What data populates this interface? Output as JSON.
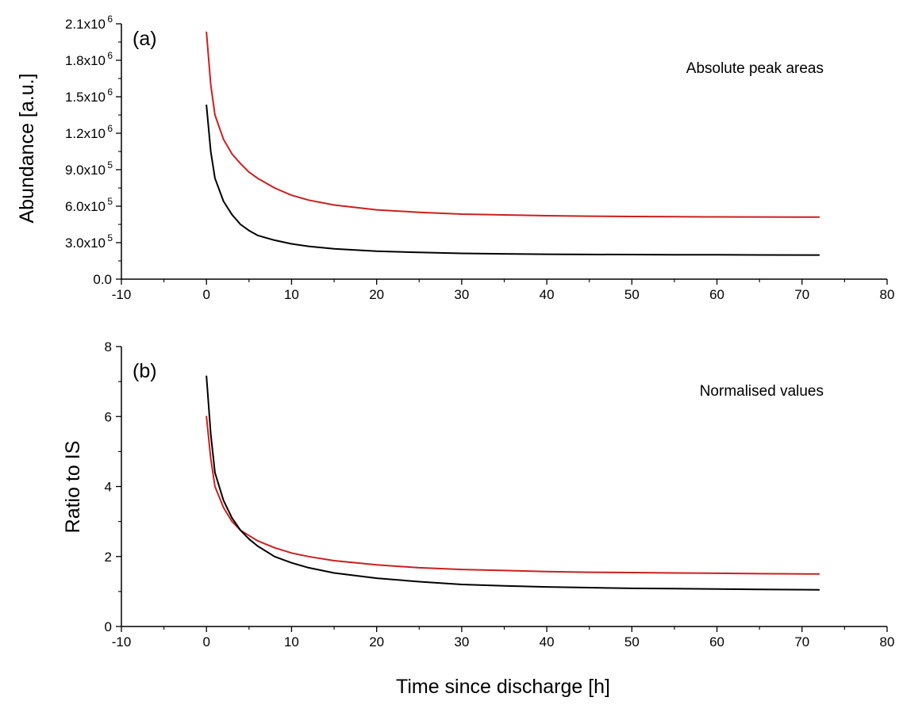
{
  "chart_data": [
    {
      "type": "line",
      "panel_label": "(a)",
      "annotation": "Absolute peak areas",
      "xlabel": "",
      "ylabel": "Abundance [a.u.]",
      "xlim": [
        -10,
        80
      ],
      "ylim": [
        0,
        2100000
      ],
      "xticks": [
        -10,
        0,
        10,
        20,
        30,
        40,
        50,
        60,
        70,
        80
      ],
      "xtick_labels": [
        "-10",
        "0",
        "10",
        "20",
        "30",
        "40",
        "50",
        "60",
        "70",
        "80"
      ],
      "yticks": [
        0,
        300000,
        600000,
        900000,
        1200000,
        1500000,
        1800000,
        2100000
      ],
      "ytick_labels": [
        {
          "mantissa": "0.0",
          "exp": ""
        },
        {
          "mantissa": "3.0x10",
          "exp": "5"
        },
        {
          "mantissa": "6.0x10",
          "exp": "5"
        },
        {
          "mantissa": "9.0x10",
          "exp": "5"
        },
        {
          "mantissa": "1.2x10",
          "exp": "6"
        },
        {
          "mantissa": "1.5x10",
          "exp": "6"
        },
        {
          "mantissa": "1.8x10",
          "exp": "6"
        },
        {
          "mantissa": "2.1x10",
          "exp": "6"
        }
      ],
      "grid": false,
      "series": [
        {
          "color": "#cc1f1f",
          "x": [
            0,
            0.5,
            1,
            2,
            3,
            4,
            5,
            6,
            8,
            10,
            12,
            15,
            20,
            25,
            30,
            35,
            40,
            45,
            50,
            55,
            60,
            65,
            72
          ],
          "y": [
            2030000,
            1600000,
            1350000,
            1150000,
            1030000,
            950000,
            880000,
            830000,
            750000,
            690000,
            650000,
            610000,
            570000,
            550000,
            535000,
            528000,
            522000,
            518000,
            515000,
            513000,
            512000,
            511000,
            510000
          ]
        },
        {
          "color": "#000000",
          "x": [
            0,
            0.5,
            1,
            2,
            3,
            4,
            5,
            6,
            8,
            10,
            12,
            15,
            20,
            25,
            30,
            35,
            40,
            45,
            50,
            55,
            60,
            65,
            72
          ],
          "y": [
            1430000,
            1050000,
            830000,
            640000,
            530000,
            450000,
            400000,
            360000,
            320000,
            290000,
            270000,
            250000,
            230000,
            220000,
            212000,
            208000,
            205000,
            203000,
            202000,
            201000,
            200000,
            199000,
            198000
          ]
        }
      ]
    },
    {
      "type": "line",
      "panel_label": "(b)",
      "annotation": "Normalised values",
      "xlabel": "Time since discharge [h]",
      "ylabel": "Ratio to IS",
      "xlim": [
        -10,
        80
      ],
      "ylim": [
        0,
        8
      ],
      "xticks": [
        -10,
        0,
        10,
        20,
        30,
        40,
        50,
        60,
        70,
        80
      ],
      "xtick_labels": [
        "-10",
        "0",
        "10",
        "20",
        "30",
        "40",
        "50",
        "60",
        "70",
        "80"
      ],
      "yticks": [
        0,
        2,
        4,
        6,
        8
      ],
      "ytick_labels": [
        {
          "mantissa": "0",
          "exp": ""
        },
        {
          "mantissa": "2",
          "exp": ""
        },
        {
          "mantissa": "4",
          "exp": ""
        },
        {
          "mantissa": "6",
          "exp": ""
        },
        {
          "mantissa": "8",
          "exp": ""
        }
      ],
      "grid": false,
      "series": [
        {
          "color": "#cc1f1f",
          "x": [
            0,
            0.5,
            1,
            2,
            3,
            4,
            5,
            6,
            8,
            10,
            12,
            15,
            20,
            25,
            30,
            35,
            40,
            45,
            50,
            55,
            60,
            65,
            72
          ],
          "y": [
            6.0,
            4.8,
            4.0,
            3.4,
            3.0,
            2.75,
            2.6,
            2.45,
            2.25,
            2.1,
            2.0,
            1.88,
            1.76,
            1.68,
            1.63,
            1.6,
            1.57,
            1.55,
            1.54,
            1.53,
            1.52,
            1.51,
            1.5
          ]
        },
        {
          "color": "#000000",
          "x": [
            0,
            0.5,
            1,
            2,
            3,
            4,
            5,
            6,
            8,
            10,
            12,
            15,
            20,
            25,
            30,
            35,
            40,
            45,
            50,
            55,
            60,
            65,
            72
          ],
          "y": [
            7.15,
            5.5,
            4.4,
            3.6,
            3.1,
            2.75,
            2.5,
            2.3,
            2.0,
            1.82,
            1.68,
            1.53,
            1.38,
            1.28,
            1.2,
            1.16,
            1.13,
            1.11,
            1.09,
            1.08,
            1.07,
            1.06,
            1.05
          ]
        }
      ]
    }
  ]
}
